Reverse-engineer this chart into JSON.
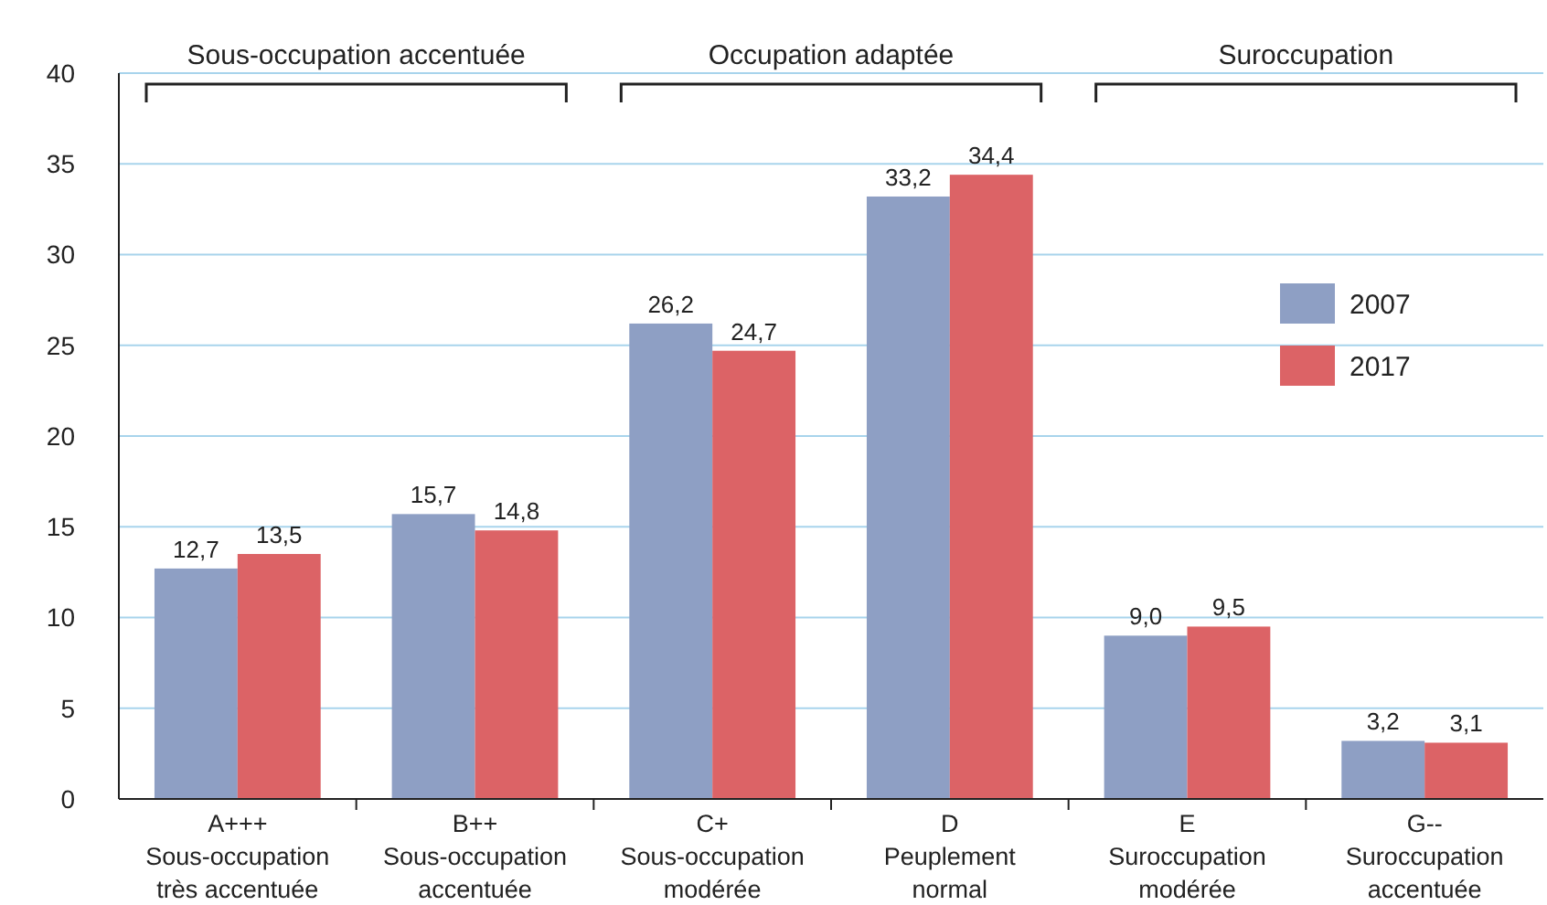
{
  "chart_data": {
    "type": "bar",
    "categories": [
      "A+++\nSous-occupation\ntrès accentuée",
      "B++\nSous-occupation\naccentuée",
      "C+\nSous-occupation\nmodérée",
      "D\nPeuplement\nnormal",
      "E\nSuroccupation\nmodérée",
      "G--\nSuroccupation\naccentuée"
    ],
    "series": [
      {
        "name": "2007",
        "color": "#8e9fc4",
        "values": [
          12.7,
          15.7,
          26.2,
          33.2,
          9.0,
          3.2
        ],
        "value_labels": [
          "12,7",
          "15,7",
          "26,2",
          "33,2",
          "9,0",
          "3,2"
        ]
      },
      {
        "name": "2017",
        "color": "#dc6366",
        "values": [
          13.5,
          14.8,
          24.7,
          34.4,
          9.5,
          3.1
        ],
        "value_labels": [
          "13,5",
          "14,8",
          "24,7",
          "34,4",
          "9,5",
          "3,1"
        ]
      }
    ],
    "ylim": [
      0,
      40
    ],
    "yticks": [
      0,
      5,
      10,
      15,
      20,
      25,
      30,
      35,
      40
    ],
    "grid": "y",
    "legend": "right",
    "annotations": [
      "Sous-occupation accentuée",
      "Occupation adaptée",
      "Suroccupation"
    ]
  }
}
